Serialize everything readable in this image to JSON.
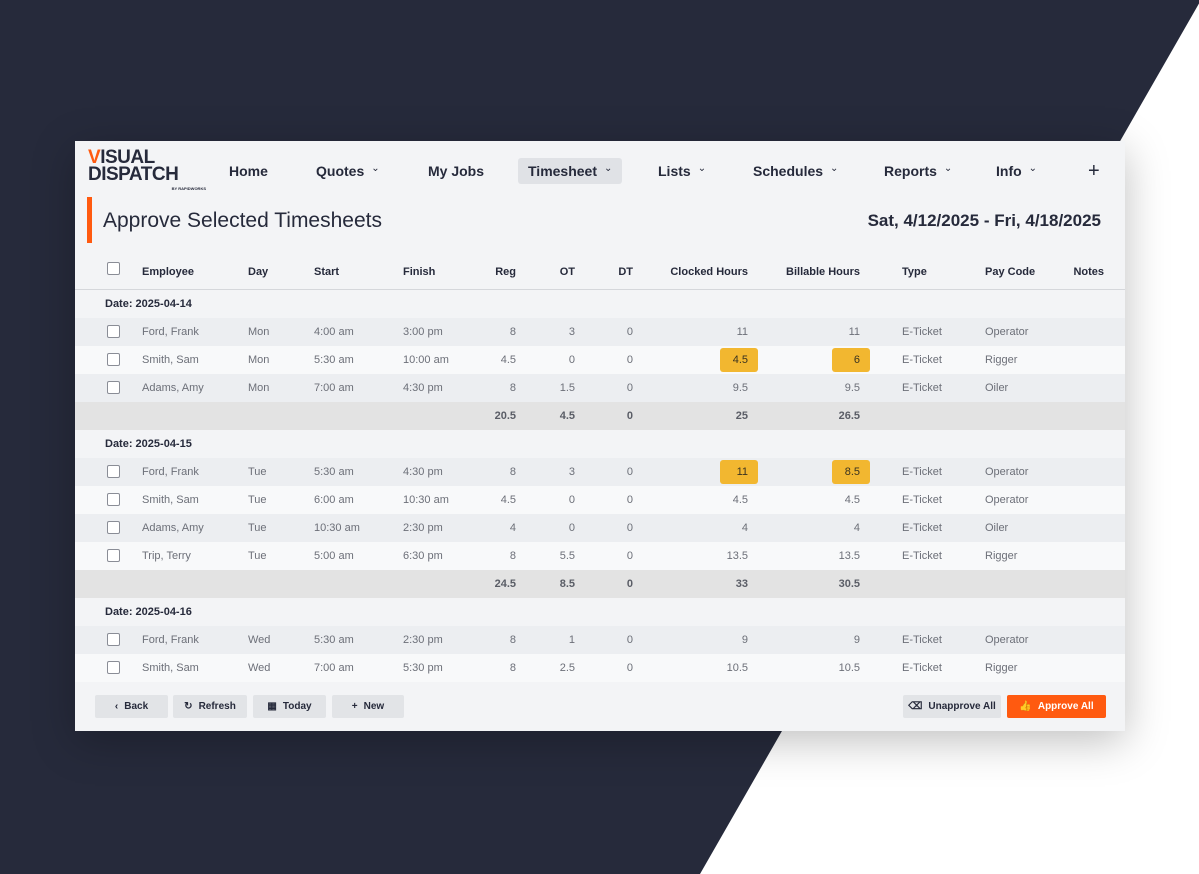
{
  "logo": {
    "line1": "VISUAL",
    "line2": "DISPATCH",
    "byline": "BY RAPIDWORKS"
  },
  "nav": [
    {
      "label": "Home",
      "dropdown": false
    },
    {
      "label": "Quotes",
      "dropdown": true
    },
    {
      "label": "My Jobs",
      "dropdown": false
    },
    {
      "label": "Timesheet",
      "dropdown": true,
      "active": true
    },
    {
      "label": "Lists",
      "dropdown": true
    },
    {
      "label": "Schedules",
      "dropdown": true
    },
    {
      "label": "Reports",
      "dropdown": true
    },
    {
      "label": "Info",
      "dropdown": true
    }
  ],
  "nav_add": "+",
  "page": {
    "title": "Approve Selected Timesheets",
    "date_range": "Sat, 4/12/2025 - Fri, 4/18/2025"
  },
  "columns": [
    "Employee",
    "Day",
    "Start",
    "Finish",
    "Reg",
    "OT",
    "DT",
    "Clocked Hours",
    "Billable Hours",
    "Type",
    "Pay Code",
    "Notes"
  ],
  "groups": [
    {
      "date": "Date: 2025-04-14",
      "rows": [
        [
          "Ford, Frank",
          "Mon",
          "4:00 am",
          "3:00 pm",
          "8",
          "3",
          "0",
          "11",
          "11",
          "E-Ticket",
          "Operator"
        ],
        [
          "Smith, Sam",
          "Mon",
          "5:30 am",
          "10:00 am",
          "4.5",
          "0",
          "0",
          "4.5",
          "6",
          "E-Ticket",
          "Rigger",
          true
        ],
        [
          "Adams, Amy",
          "Mon",
          "7:00 am",
          "4:30 pm",
          "8",
          "1.5",
          "0",
          "9.5",
          "9.5",
          "E-Ticket",
          "Oiler"
        ]
      ],
      "totals": [
        "20.5",
        "4.5",
        "0",
        "25",
        "26.5"
      ]
    },
    {
      "date": "Date: 2025-04-15",
      "rows": [
        [
          "Ford, Frank",
          "Tue",
          "5:30 am",
          "4:30 pm",
          "8",
          "3",
          "0",
          "11",
          "8.5",
          "E-Ticket",
          "Operator",
          true
        ],
        [
          "Smith, Sam",
          "Tue",
          "6:00 am",
          "10:30 am",
          "4.5",
          "0",
          "0",
          "4.5",
          "4.5",
          "E-Ticket",
          "Operator"
        ],
        [
          "Adams, Amy",
          "Tue",
          "10:30 am",
          "2:30 pm",
          "4",
          "0",
          "0",
          "4",
          "4",
          "E-Ticket",
          "Oiler"
        ],
        [
          "Trip, Terry",
          "Tue",
          "5:00 am",
          "6:30 pm",
          "8",
          "5.5",
          "0",
          "13.5",
          "13.5",
          "E-Ticket",
          "Rigger"
        ]
      ],
      "totals": [
        "24.5",
        "8.5",
        "0",
        "33",
        "30.5"
      ]
    },
    {
      "date": "Date: 2025-04-16",
      "rows": [
        [
          "Ford, Frank",
          "Wed",
          "5:30 am",
          "2:30 pm",
          "8",
          "1",
          "0",
          "9",
          "9",
          "E-Ticket",
          "Operator"
        ],
        [
          "Smith, Sam",
          "Wed",
          "7:00 am",
          "5:30 pm",
          "8",
          "2.5",
          "0",
          "10.5",
          "10.5",
          "E-Ticket",
          "Rigger"
        ]
      ]
    }
  ],
  "footer": {
    "back": "Back",
    "refresh": "Refresh",
    "today": "Today",
    "new": "New",
    "unapprove_all": "Unapprove All",
    "approve_all": "Approve All"
  },
  "colors": {
    "accent": "#ff5a10",
    "highlight": "#f2b730",
    "background": "#262a3b"
  }
}
